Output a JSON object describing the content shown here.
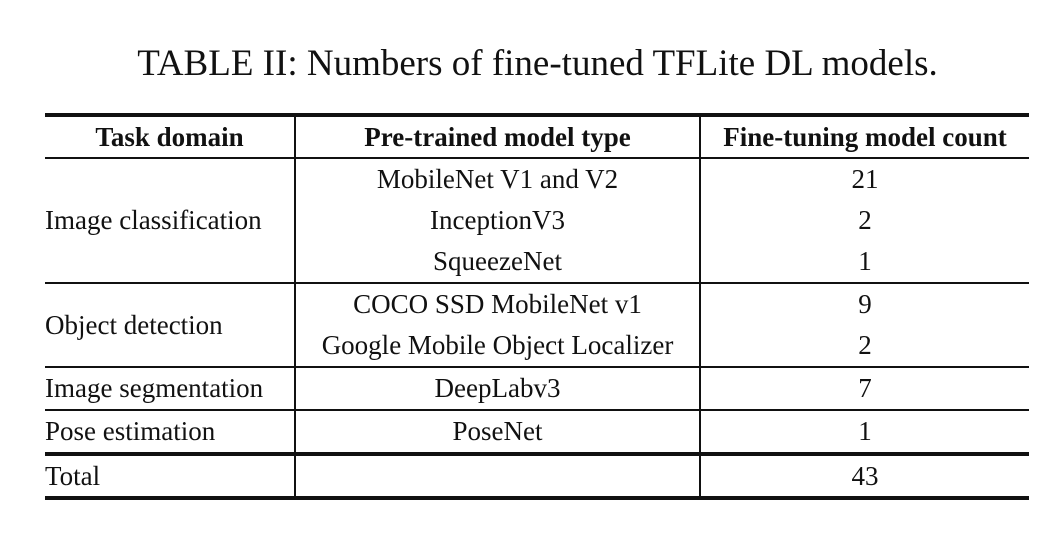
{
  "caption": "TABLE II: Numbers of fine-tuned TFLite DL models.",
  "table": {
    "headers": [
      "Task domain",
      "Pre-trained model type",
      "Fine-tuning model count"
    ],
    "groups": [
      {
        "domain": "Image classification",
        "rows": [
          {
            "model": "MobileNet V1 and V2",
            "count": "21"
          },
          {
            "model": "InceptionV3",
            "count": "2"
          },
          {
            "model": "SqueezeNet",
            "count": "1"
          }
        ]
      },
      {
        "domain": "Object detection",
        "rows": [
          {
            "model": "COCO SSD MobileNet v1",
            "count": "9"
          },
          {
            "model": "Google Mobile Object Localizer",
            "count": "2"
          }
        ]
      },
      {
        "domain": "Image segmentation",
        "rows": [
          {
            "model": "DeepLabv3",
            "count": "7"
          }
        ]
      },
      {
        "domain": "Pose estimation",
        "rows": [
          {
            "model": "PoseNet",
            "count": "1"
          }
        ]
      }
    ],
    "total": {
      "label": "Total",
      "model": "",
      "count": "43"
    }
  }
}
